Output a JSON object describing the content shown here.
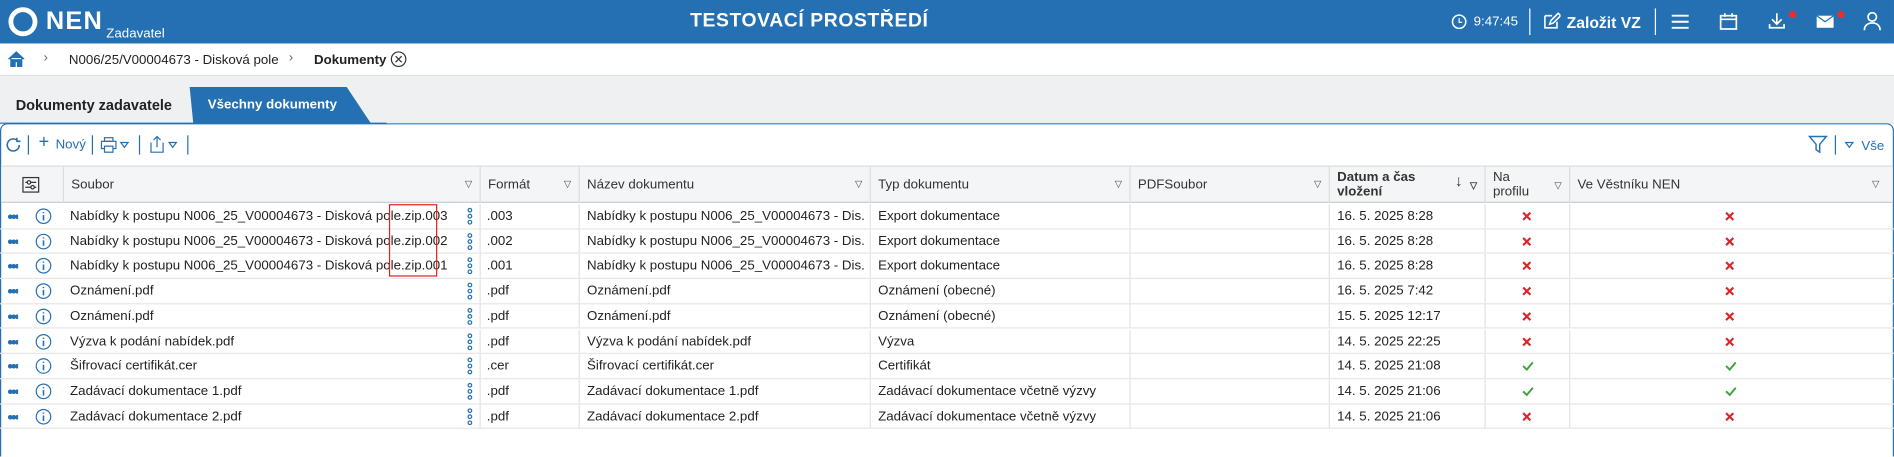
{
  "header": {
    "logo": "NEN",
    "subtitle": "Zadavatel",
    "environment": "TESTOVACÍ PROSTŘEDÍ",
    "time": "9:47:45",
    "create_button": "Založit VZ"
  },
  "breadcrumb": {
    "items": [
      "N006/25/V00004673 - Disková pole",
      "Dokumenty"
    ]
  },
  "tabs": [
    "Dokumenty zadavatele",
    "Všechny dokumenty"
  ],
  "toolbar": {
    "new_button": "Nový",
    "filter_button": "Vše"
  },
  "table": {
    "columns": [
      "Soubor",
      "Formát",
      "Název dokumentu",
      "Typ dokumentu",
      "PDFSoubor",
      "Datum a čas vložení",
      "Na profilu",
      "Ve Věstníku NEN"
    ],
    "rows": [
      {
        "file": "Nabídky k postupu N006_25_V00004673 - Disková pole.zip.003",
        "format": ".003",
        "name": "Nabídky k postupu N006_25_V00004673 - Dis...",
        "type": "Export dokumentace",
        "date": "16. 5. 2025 8:28",
        "on_profile": false,
        "in_bulletin": false
      },
      {
        "file": "Nabídky k postupu N006_25_V00004673 - Disková pole.zip.002",
        "format": ".002",
        "name": "Nabídky k postupu N006_25_V00004673 - Dis...",
        "type": "Export dokumentace",
        "date": "16. 5. 2025 8:28",
        "on_profile": false,
        "in_bulletin": false
      },
      {
        "file": "Nabídky k postupu N006_25_V00004673 - Disková pole.zip.001",
        "format": ".001",
        "name": "Nabídky k postupu N006_25_V00004673 - Dis...",
        "type": "Export dokumentace",
        "date": "16. 5. 2025 8:28",
        "on_profile": false,
        "in_bulletin": false
      },
      {
        "file": "Oznámení.pdf",
        "format": ".pdf",
        "name": "Oznámení.pdf",
        "type": "Oznámení (obecné)",
        "date": "16. 5. 2025 7:42",
        "on_profile": false,
        "in_bulletin": false
      },
      {
        "file": "Oznámení.pdf",
        "format": ".pdf",
        "name": "Oznámení.pdf",
        "type": "Oznámení (obecné)",
        "date": "15. 5. 2025 12:17",
        "on_profile": false,
        "in_bulletin": false
      },
      {
        "file": "Výzva k podání nabídek.pdf",
        "format": ".pdf",
        "name": "Výzva k podání nabídek.pdf",
        "type": "Výzva",
        "date": "14. 5. 2025 22:25",
        "on_profile": false,
        "in_bulletin": false
      },
      {
        "file": "Šifrovací certifikát.cer",
        "format": ".cer",
        "name": "Šifrovací certifikát.cer",
        "type": "Certifikát",
        "date": "14. 5. 2025 21:08",
        "on_profile": true,
        "in_bulletin": true
      },
      {
        "file": "Zadávací dokumentace 1.pdf",
        "format": ".pdf",
        "name": "Zadávací dokumentace 1.pdf",
        "type": "Zadávací dokumentace včetně výzvy",
        "date": "14. 5. 2025 21:06",
        "on_profile": true,
        "in_bulletin": true
      },
      {
        "file": "Zadávací dokumentace 2.pdf",
        "format": ".pdf",
        "name": "Zadávací dokumentace 2.pdf",
        "type": "Zadávací dokumentace včetně výzvy",
        "date": "14. 5. 2025 21:06",
        "on_profile": false,
        "in_bulletin": false
      }
    ]
  }
}
